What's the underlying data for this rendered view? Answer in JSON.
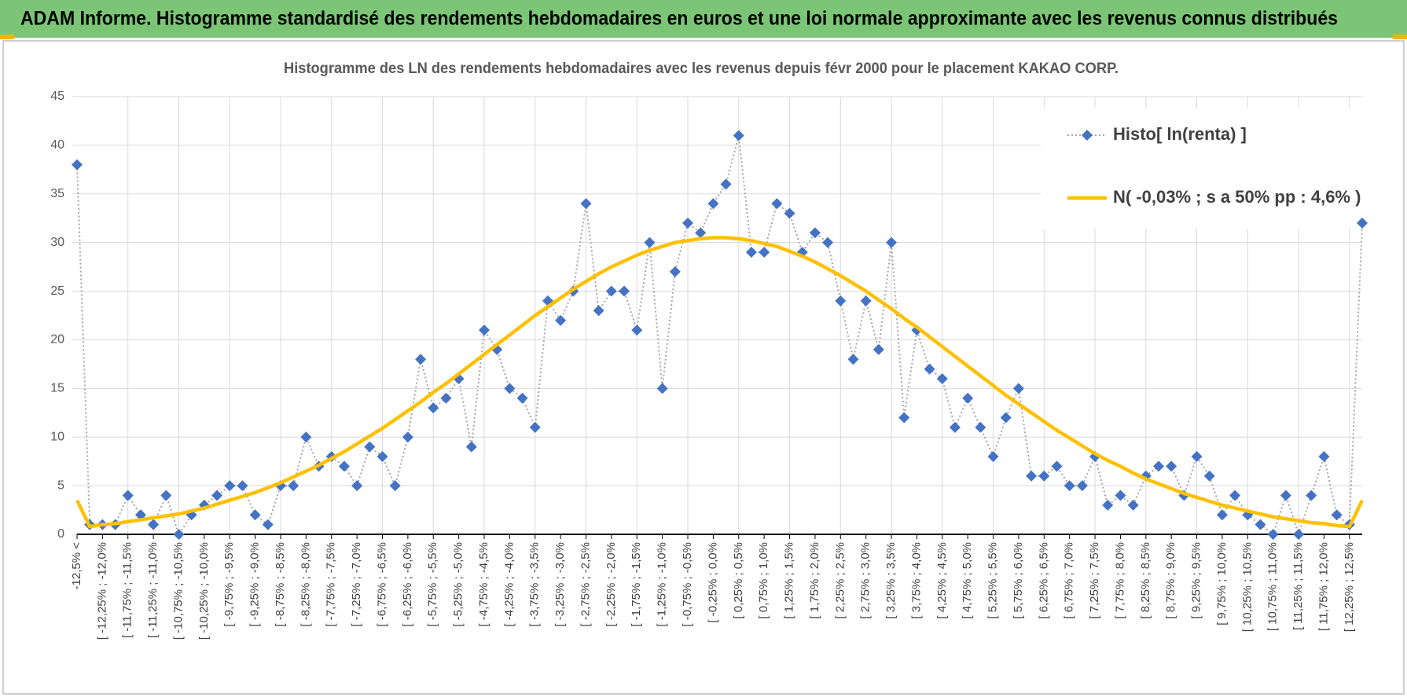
{
  "header": {
    "title": "ADAM Informe. Histogramme standardisé des rendements hebdomadaires en euros et une loi normale approximante avec les revenus connus distribués"
  },
  "chart_data": {
    "type": "line",
    "title": "Histogramme  des LN des rendements  hebdomadaires avec les revenus depuis févr 2000 pour le placement KAKAO CORP.",
    "categories": [
      "-12,5% <",
      null,
      "[ -12,25% ; -12,0%",
      null,
      "[ -11,75% ; -11,5%",
      null,
      "[ -11,25% ; -11,0%",
      null,
      "[ -10,75% ; -10,5%",
      null,
      "[ -10,25% ; -10,0%",
      null,
      "[ -9,75% ; -9,5%",
      null,
      "[ -9,25% ; -9,0%",
      null,
      "[ -8,75% ; -8,5%",
      null,
      "[ -8,25% ; -8,0%",
      null,
      "[ -7,75% ; -7,5%",
      null,
      "[ -7,25% ; -7,0%",
      null,
      "[ -6,75% ; -6,5%",
      null,
      "[ -6,25% ; -6,0%",
      null,
      "[ -5,75% ; -5,5%",
      null,
      "[ -5,25% ; -5,0%",
      null,
      "[ -4,75% ; -4,5%",
      null,
      "[ -4,25% ; -4,0%",
      null,
      "[ -3,75% ; -3,5%",
      null,
      "[ -3,25% ; -3,0%",
      null,
      "[ -2,75% ; -2,5%",
      null,
      "[ -2,25% ; -2,0%",
      null,
      "[ -1,75% ; -1,5%",
      null,
      "[ -1,25% ; -1,0%",
      null,
      "[ -0,75% ; -0,5%",
      null,
      "[ -0,25% ; 0,0%",
      null,
      "[ 0,25% ; 0,5%",
      null,
      "[ 0,75% ; 1,0%",
      null,
      "[ 1,25% ; 1,5%",
      null,
      "[ 1,75% ; 2,0%",
      null,
      "[ 2,25% ; 2,5%",
      null,
      "[ 2,75% ; 3,0%",
      null,
      "[ 3,25% ; 3,5%",
      null,
      "[ 3,75% ; 4,0%",
      null,
      "[ 4,25% ; 4,5%",
      null,
      "[ 4,75% ; 5,0%",
      null,
      "[ 5,25% ; 5,5%",
      null,
      "[ 5,75% ; 6,0%",
      null,
      "[ 6,25% ; 6,5%",
      null,
      "[ 6,75% ; 7,0%",
      null,
      "[ 7,25% ; 7,5%",
      null,
      "[ 7,75% ; 8,0%",
      null,
      "[ 8,25% ; 8,5%",
      null,
      "[ 8,75% ; 9,0%",
      null,
      "[ 9,25% ; 9,5%",
      null,
      "[ 9,75% ; 10,0%",
      null,
      "[ 10,25% ; 10,5%",
      null,
      "[ 10,75% ; 11,0%",
      null,
      "[ 11,25% ; 11,5%",
      null,
      "[ 11,75% ; 12,0%",
      null,
      "[ 12,25% ; 12,5%",
      null
    ],
    "series": [
      {
        "name": "Histo[ ln(renta) ]",
        "color": "#4472c4",
        "line_color": "#a6a6a6",
        "line_style": "dotted",
        "marker": "diamond",
        "values": [
          38,
          1,
          1,
          1,
          4,
          2,
          1,
          4,
          0,
          2,
          3,
          4,
          5,
          5,
          2,
          1,
          5,
          5,
          10,
          7,
          8,
          7,
          5,
          9,
          8,
          5,
          10,
          18,
          13,
          14,
          16,
          9,
          21,
          19,
          15,
          14,
          11,
          24,
          22,
          25,
          34,
          23,
          25,
          25,
          21,
          30,
          15,
          27,
          32,
          31,
          34,
          36,
          41,
          29,
          29,
          34,
          33,
          29,
          31,
          30,
          24,
          18,
          24,
          19,
          30,
          12,
          21,
          17,
          16,
          11,
          14,
          11,
          8,
          12,
          15,
          6,
          6,
          7,
          5,
          5,
          8,
          3,
          4,
          3,
          6,
          7,
          7,
          4,
          8,
          6,
          2,
          4,
          2,
          1,
          0,
          4,
          0,
          4,
          8,
          2,
          1,
          32
        ]
      },
      {
        "name": "N( -0,03% ; s a 50% pp : 4,6% )",
        "color": "#ffc000",
        "line_style": "solid",
        "marker": "none",
        "values": [
          3.5,
          0.8,
          1.0,
          1.1,
          1.3,
          1.5,
          1.7,
          1.9,
          2.1,
          2.4,
          2.7,
          3.1,
          3.5,
          3.9,
          4.3,
          4.8,
          5.3,
          5.9,
          6.5,
          7.1,
          7.8,
          8.5,
          9.3,
          10.1,
          10.9,
          11.8,
          12.7,
          13.6,
          14.6,
          15.5,
          16.5,
          17.5,
          18.5,
          19.5,
          20.5,
          21.5,
          22.5,
          23.4,
          24.3,
          25.2,
          26.0,
          26.8,
          27.5,
          28.1,
          28.7,
          29.2,
          29.6,
          30.0,
          30.2,
          30.4,
          30.5,
          30.5,
          30.4,
          30.2,
          29.9,
          29.6,
          29.1,
          28.6,
          28.0,
          27.3,
          26.6,
          25.8,
          25.0,
          24.1,
          23.2,
          22.2,
          21.3,
          20.3,
          19.3,
          18.3,
          17.3,
          16.3,
          15.3,
          14.3,
          13.4,
          12.5,
          11.6,
          10.7,
          9.9,
          9.1,
          8.3,
          7.6,
          7.0,
          6.3,
          5.7,
          5.2,
          4.7,
          4.2,
          3.8,
          3.4,
          3.0,
          2.7,
          2.4,
          2.1,
          1.8,
          1.6,
          1.4,
          1.2,
          1.1,
          0.9,
          0.8,
          3.5
        ]
      }
    ],
    "ylim": [
      0,
      45
    ],
    "yticks": [
      0,
      5,
      10,
      15,
      20,
      25,
      30,
      35,
      40,
      45
    ],
    "grid": true,
    "legend": "upper-right"
  }
}
